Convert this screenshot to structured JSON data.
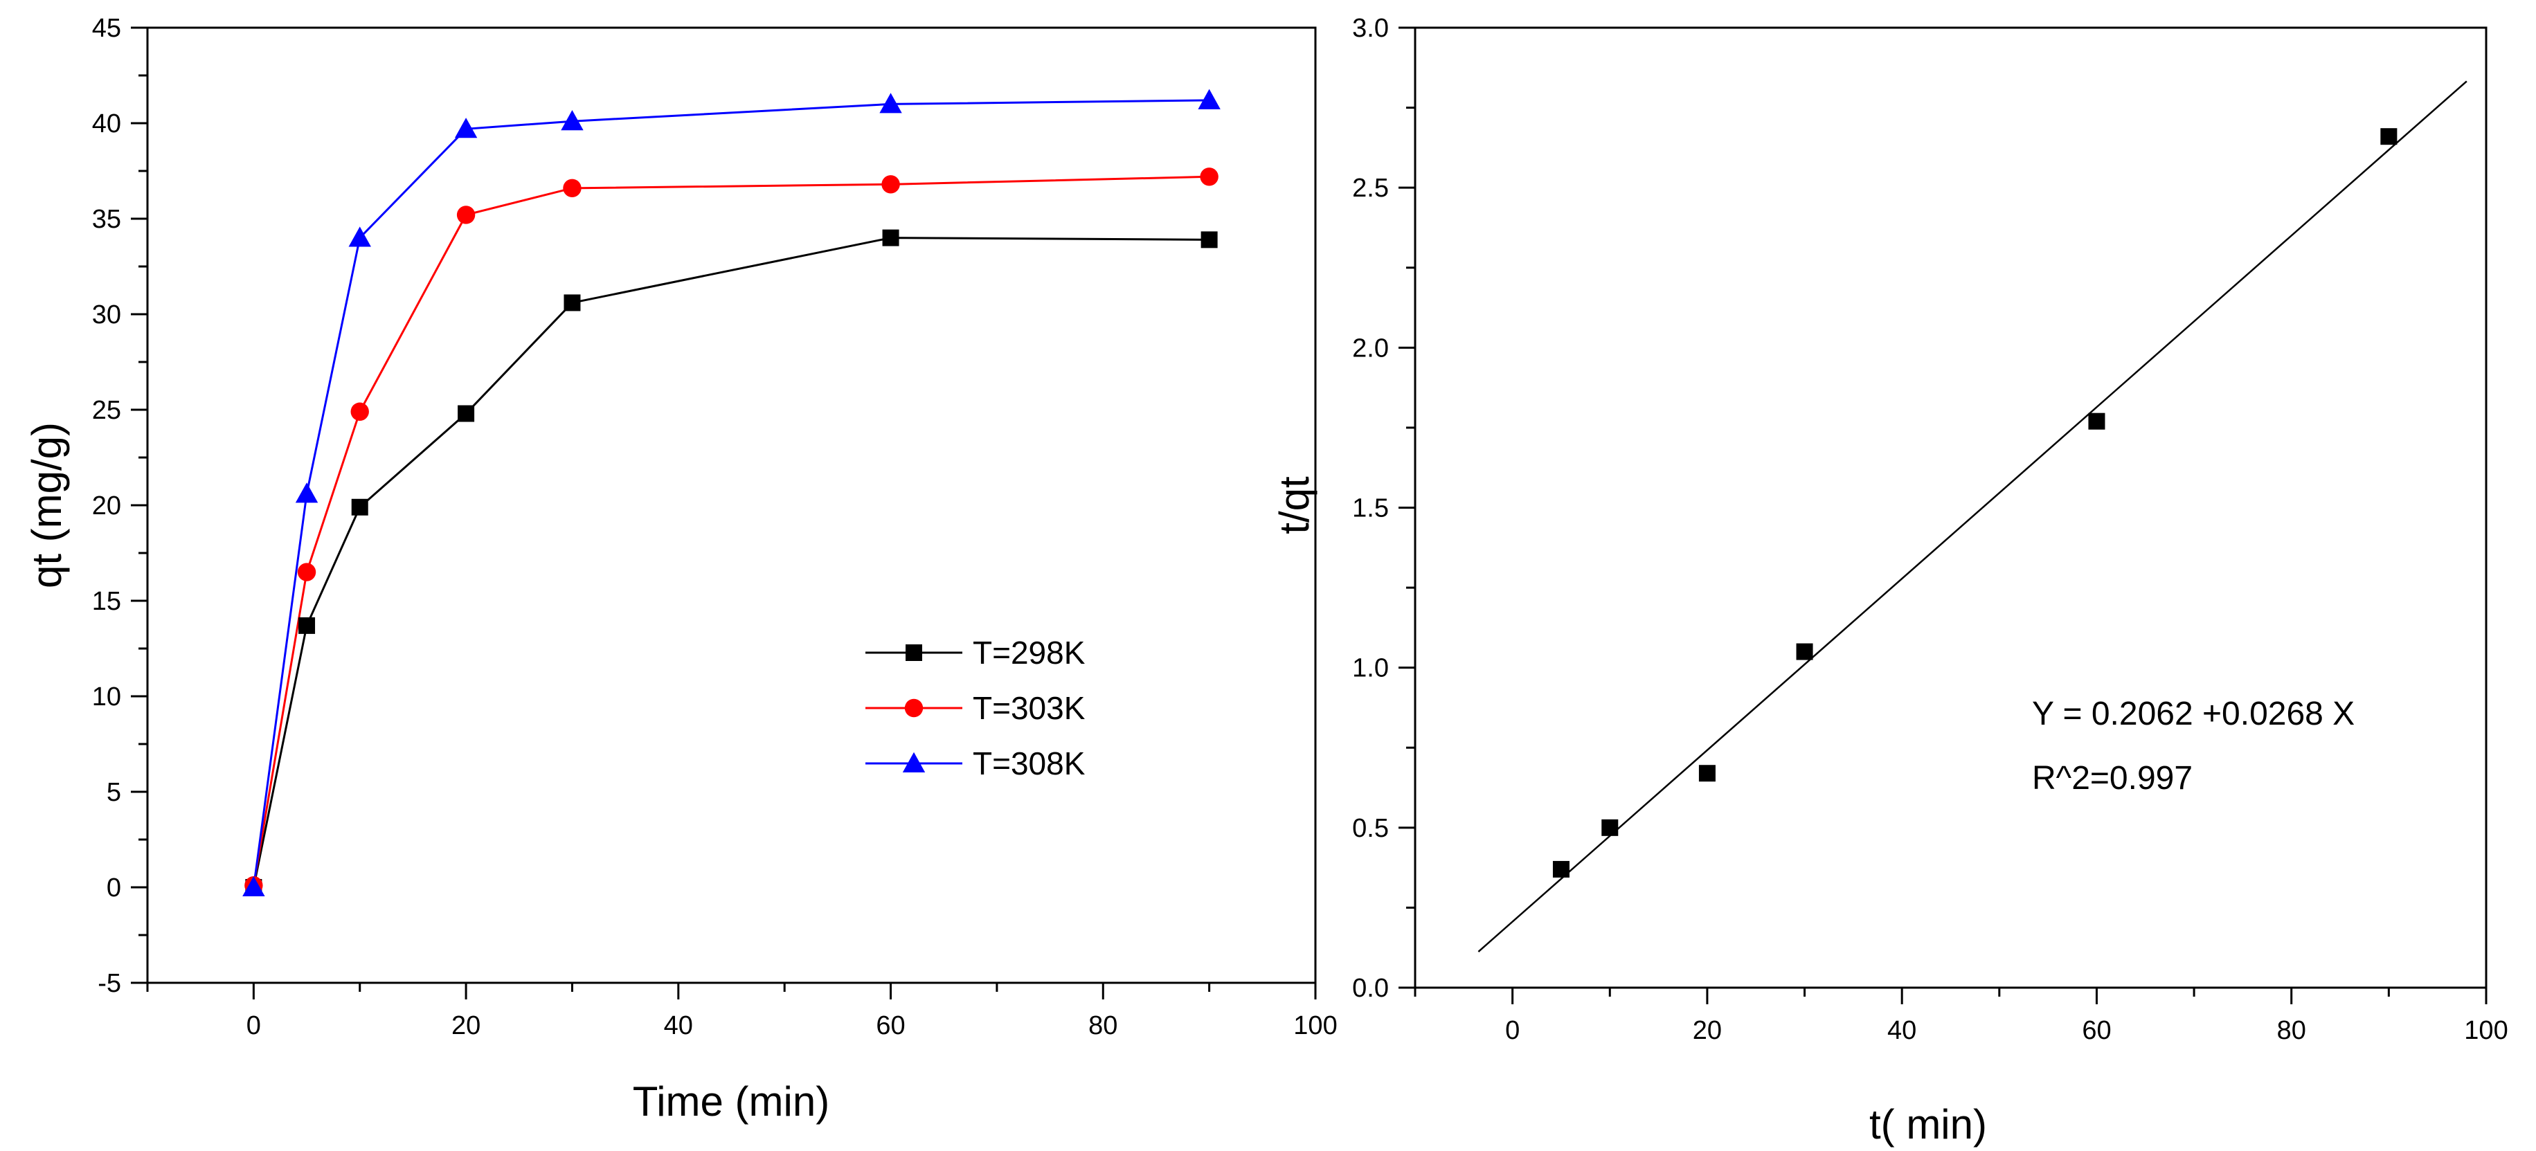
{
  "chart_data": [
    {
      "type": "line",
      "title": "",
      "xlabel": "Time (min)",
      "ylabel": "qt (mg/g)",
      "xlim": [
        -10,
        100
      ],
      "ylim": [
        -5,
        45
      ],
      "xticks": [
        0,
        20,
        40,
        60,
        80,
        100
      ],
      "yticks": [
        -5,
        0,
        5,
        10,
        15,
        20,
        25,
        30,
        35,
        40,
        45
      ],
      "grid": false,
      "legend_position": "center-right",
      "x": [
        0,
        5,
        10,
        20,
        30,
        60,
        90
      ],
      "series": [
        {
          "name": "T=298K",
          "color": "#000000",
          "marker": "square",
          "values": [
            0,
            13.7,
            19.9,
            24.8,
            30.6,
            34.0,
            33.9
          ]
        },
        {
          "name": "T=303K",
          "color": "#ff0000",
          "marker": "circle",
          "values": [
            0.1,
            16.5,
            24.9,
            35.2,
            36.6,
            36.8,
            37.2
          ]
        },
        {
          "name": "T=308K",
          "color": "#0000ff",
          "marker": "triangle",
          "values": [
            0,
            20.6,
            34.0,
            39.7,
            40.1,
            41.0,
            41.2
          ]
        }
      ]
    },
    {
      "type": "scatter",
      "title": "",
      "xlabel": "t(  min)",
      "ylabel": "t/qt",
      "xlim": [
        -10,
        100
      ],
      "ylim": [
        0.0,
        3.0
      ],
      "xticks": [
        0,
        20,
        40,
        60,
        80,
        100
      ],
      "yticks": [
        "0.0",
        "0.5",
        "1.0",
        "1.5",
        "2.0",
        "2.5",
        "3.0"
      ],
      "grid": false,
      "points": {
        "x": [
          5,
          10,
          20,
          30,
          60,
          90
        ],
        "y": [
          0.37,
          0.5,
          0.67,
          1.05,
          1.77,
          2.66
        ]
      },
      "fit_line": {
        "intercept": 0.2062,
        "slope": 0.0268,
        "x_range": [
          -3.5,
          98
        ]
      },
      "annotations": [
        "Y = 0.2062 +0.0268 X",
        "R^2=0.997"
      ]
    }
  ]
}
